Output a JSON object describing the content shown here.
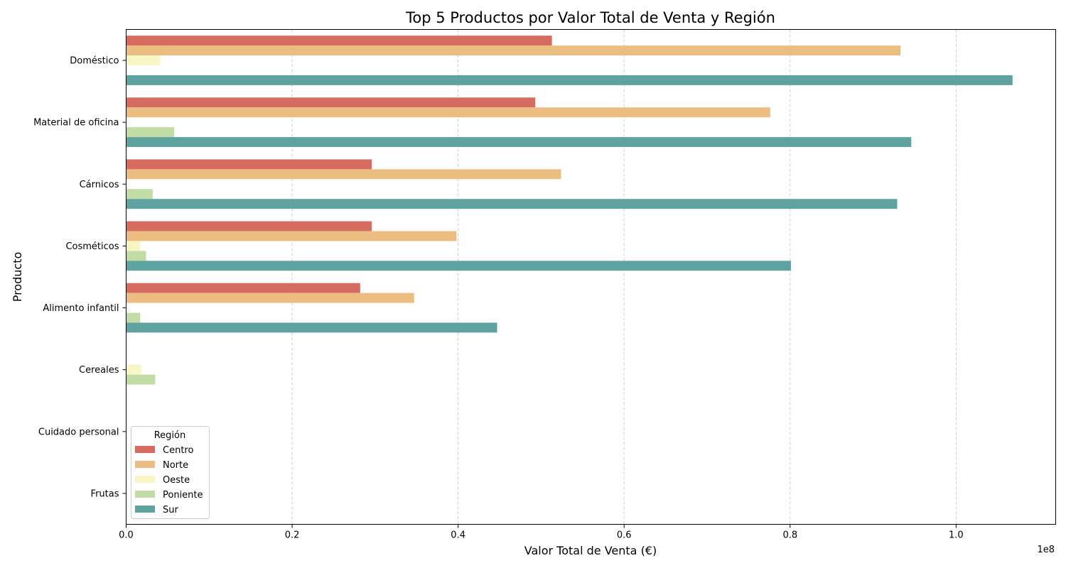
{
  "chart_data": {
    "type": "bar",
    "orientation": "horizontal",
    "title": "Top 5 Productos por Valor Total de Venta y Región",
    "xlabel": "Valor Total de Venta (€)",
    "ylabel": "Producto",
    "x_offset_label": "1e8",
    "x_tick_values": [
      0,
      20000000,
      40000000,
      60000000,
      80000000,
      100000000
    ],
    "x_tick_labels": [
      "0.0",
      "0.2",
      "0.4",
      "0.6",
      "0.8",
      "1.0"
    ],
    "xlim": [
      0,
      112000000
    ],
    "grid": "x-dashed",
    "categories": [
      "Doméstico",
      "Material de oficina",
      "Cárnicos",
      "Cosméticos",
      "Alimento infantil",
      "Cereales",
      "Cuidado personal",
      "Frutas"
    ],
    "legend": {
      "title": "Región",
      "placement": "lower-left"
    },
    "series": [
      {
        "name": "Centro",
        "color": "#d56c5f",
        "values": [
          51300000,
          49300000,
          29600000,
          29600000,
          28200000,
          null,
          null,
          null
        ]
      },
      {
        "name": "Norte",
        "color": "#ecbd81",
        "values": [
          93300000,
          77600000,
          52400000,
          39800000,
          34700000,
          null,
          null,
          null
        ]
      },
      {
        "name": "Oeste",
        "color": "#f7f6c4",
        "values": [
          4100000,
          null,
          null,
          1700000,
          null,
          1800000,
          null,
          null
        ]
      },
      {
        "name": "Poniente",
        "color": "#c1dda5",
        "values": [
          null,
          5800000,
          3200000,
          2400000,
          1700000,
          3500000,
          null,
          null
        ]
      },
      {
        "name": "Sur",
        "color": "#5fa3a1",
        "values": [
          106800000,
          94600000,
          92900000,
          80100000,
          44700000,
          null,
          null,
          null
        ]
      }
    ]
  }
}
